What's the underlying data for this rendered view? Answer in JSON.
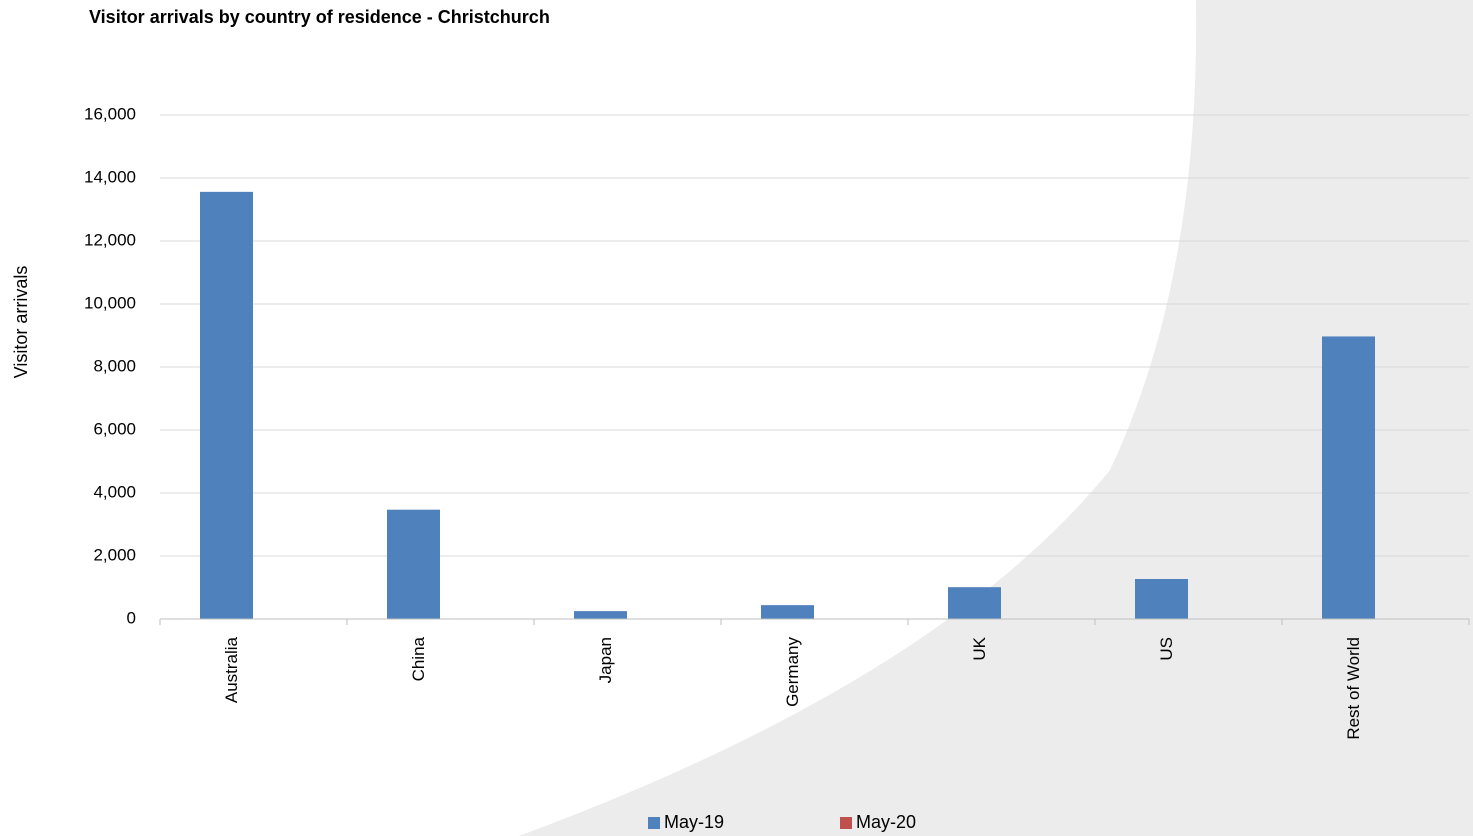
{
  "chart_data": {
    "type": "bar",
    "title": "Visitor arrivals by country of residence - Christchurch",
    "xlabel": "",
    "ylabel": "Visitor arrivals",
    "categories": [
      "Australia",
      "China",
      "Japan",
      "Germany",
      "UK",
      "US",
      "Rest of World"
    ],
    "series": [
      {
        "name": "May-19",
        "color": "#4F81BD",
        "values": [
          13560,
          3470,
          250,
          440,
          1010,
          1270,
          8970
        ]
      },
      {
        "name": "May-20",
        "color": "#C0504D",
        "values": [
          0,
          0,
          0,
          0,
          0,
          0,
          0
        ]
      }
    ],
    "ylim": [
      0,
      16000
    ],
    "yticks": [
      "0",
      "2,000",
      "4,000",
      "6,000",
      "8,000",
      "10,000",
      "12,000",
      "14,000",
      "16,000"
    ],
    "grid": true,
    "legend_position": "bottom"
  }
}
